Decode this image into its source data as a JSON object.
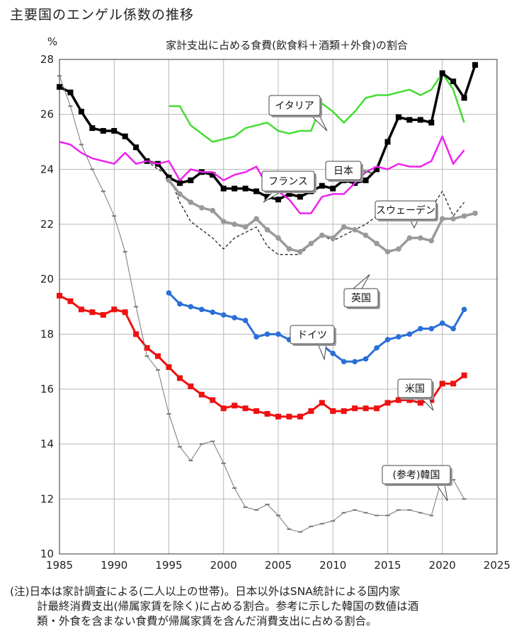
{
  "page_title": "主要国のエンゲル係数の推移",
  "note": {
    "line1": "(注)日本は家計調査による(二人以上の世帯)。日本以外はSNA統計による国内家",
    "line2": "計最終消費支出(帰属家賃を除く)に占める割合。参考に示した韓国の数値は酒",
    "line3": "類・外食を含まない食費が帰属家賃を含んだ消費支出に占める割合。"
  },
  "chart_data": {
    "type": "line",
    "subtitle": "家計支出に占める食費(飲食料＋酒類＋外食)の割合",
    "ylabel": "%",
    "xlabel": "",
    "xlim": [
      1985,
      2025
    ],
    "ylim": [
      10,
      28
    ],
    "xticks": [
      1985,
      1990,
      1995,
      2000,
      2005,
      2010,
      2015,
      2020,
      2025
    ],
    "yticks": [
      10,
      12,
      14,
      16,
      18,
      20,
      22,
      24,
      26,
      28
    ],
    "grid": true,
    "series": [
      {
        "name": "イタリア",
        "color": "#44dd33",
        "marker": "none",
        "width": 2.5,
        "dash": "",
        "x": [
          1995,
          1996,
          1997,
          1998,
          1999,
          2000,
          2001,
          2002,
          2003,
          2004,
          2005,
          2006,
          2007,
          2008,
          2009,
          2010,
          2011,
          2012,
          2013,
          2014,
          2015,
          2016,
          2017,
          2018,
          2019,
          2020,
          2021,
          2022
        ],
        "y": [
          26.3,
          26.3,
          25.6,
          25.3,
          25.0,
          25.1,
          25.2,
          25.5,
          25.6,
          25.7,
          25.4,
          25.3,
          25.4,
          25.4,
          26.4,
          26.1,
          25.7,
          26.1,
          26.6,
          26.7,
          26.7,
          26.8,
          26.9,
          26.7,
          26.9,
          27.5,
          26.9,
          25.7
        ]
      },
      {
        "name": "日本",
        "color": "#000000",
        "marker": "square",
        "width": 3.5,
        "dash": "",
        "x": [
          1985,
          1986,
          1987,
          1988,
          1989,
          1990,
          1991,
          1992,
          1993,
          1994,
          1995,
          1996,
          1997,
          1998,
          1999,
          2000,
          2001,
          2002,
          2003,
          2004,
          2005,
          2006,
          2007,
          2008,
          2009,
          2010,
          2011,
          2012,
          2013,
          2014,
          2015,
          2016,
          2017,
          2018,
          2019,
          2020,
          2021,
          2022,
          2023
        ],
        "y": [
          27.0,
          26.8,
          26.1,
          25.5,
          25.4,
          25.4,
          25.2,
          24.8,
          24.3,
          24.2,
          23.7,
          23.5,
          23.6,
          23.9,
          23.8,
          23.3,
          23.3,
          23.3,
          23.2,
          23.0,
          22.9,
          23.1,
          23.0,
          23.2,
          23.4,
          23.3,
          23.6,
          23.5,
          23.6,
          24.0,
          25.0,
          25.9,
          25.8,
          25.8,
          25.7,
          27.5,
          27.2,
          26.6,
          27.8
        ]
      },
      {
        "name": "フランス",
        "color": "#ee22ee",
        "marker": "none",
        "width": 2.5,
        "dash": "",
        "x": [
          1985,
          1986,
          1987,
          1988,
          1989,
          1990,
          1991,
          1992,
          1993,
          1994,
          1995,
          1996,
          1997,
          1998,
          1999,
          2000,
          2001,
          2002,
          2003,
          2004,
          2005,
          2006,
          2007,
          2008,
          2009,
          2010,
          2011,
          2012,
          2013,
          2014,
          2015,
          2016,
          2017,
          2018,
          2019,
          2020,
          2021,
          2022
        ],
        "y": [
          25.0,
          24.9,
          24.6,
          24.4,
          24.3,
          24.2,
          24.6,
          24.2,
          24.3,
          24.2,
          24.3,
          23.6,
          24.0,
          23.9,
          23.9,
          23.6,
          23.8,
          23.9,
          24.1,
          23.4,
          23.2,
          22.9,
          22.4,
          22.4,
          23.0,
          23.1,
          23.1,
          23.5,
          23.9,
          24.1,
          24.0,
          24.2,
          24.1,
          24.1,
          24.3,
          25.2,
          24.2,
          24.7
        ]
      },
      {
        "name": "スウェーデン",
        "color": "#111111",
        "marker": "none",
        "width": 1.2,
        "dash": "4,3",
        "x": [
          1993,
          1994,
          1995,
          1996,
          1997,
          1998,
          1999,
          2000,
          2001,
          2002,
          2003,
          2004,
          2005,
          2006,
          2007,
          2008,
          2009,
          2010,
          2011,
          2012,
          2013,
          2014,
          2015,
          2016,
          2017,
          2018,
          2019,
          2020,
          2021,
          2022
        ],
        "y": [
          24.3,
          24.0,
          23.8,
          22.8,
          22.1,
          21.8,
          21.5,
          21.1,
          21.5,
          21.7,
          21.9,
          21.2,
          20.9,
          20.9,
          20.9,
          21.3,
          21.6,
          21.4,
          21.6,
          21.8,
          22.0,
          22.3,
          22.3,
          22.5,
          22.7,
          22.8,
          22.6,
          23.2,
          22.3,
          22.8
        ]
      },
      {
        "name": "英国",
        "color": "#9a9a9a",
        "marker": "circle",
        "width": 3.5,
        "dash": "",
        "x": [
          1995,
          1996,
          1997,
          1998,
          1999,
          2000,
          2001,
          2002,
          2003,
          2004,
          2005,
          2006,
          2007,
          2008,
          2009,
          2010,
          2011,
          2012,
          2013,
          2014,
          2015,
          2016,
          2017,
          2018,
          2019,
          2020,
          2021,
          2022,
          2023
        ],
        "y": [
          23.6,
          23.1,
          22.8,
          22.6,
          22.5,
          22.1,
          22.0,
          21.9,
          22.2,
          21.8,
          21.5,
          21.1,
          21.0,
          21.3,
          21.6,
          21.5,
          21.9,
          21.8,
          21.6,
          21.3,
          21.0,
          21.1,
          21.5,
          21.5,
          21.4,
          22.2,
          22.2,
          22.3,
          22.4
        ]
      },
      {
        "name": "ドイツ",
        "color": "#2a6fd9",
        "marker": "circle",
        "width": 3,
        "dash": "",
        "x": [
          1995,
          1996,
          1997,
          1998,
          1999,
          2000,
          2001,
          2002,
          2003,
          2004,
          2005,
          2006,
          2007,
          2008,
          2009,
          2010,
          2011,
          2012,
          2013,
          2014,
          2015,
          2016,
          2017,
          2018,
          2019,
          2020,
          2021,
          2022
        ],
        "y": [
          19.5,
          19.1,
          19.0,
          18.9,
          18.8,
          18.7,
          18.6,
          18.5,
          17.9,
          18.0,
          18.0,
          17.8,
          18.0,
          17.8,
          17.6,
          17.3,
          17.0,
          17.0,
          17.1,
          17.5,
          17.8,
          17.9,
          18.0,
          18.2,
          18.2,
          18.4,
          18.2,
          18.9
        ]
      },
      {
        "name": "米国",
        "color": "#ee1111",
        "marker": "square",
        "width": 3,
        "dash": "",
        "x": [
          1985,
          1986,
          1987,
          1988,
          1989,
          1990,
          1991,
          1992,
          1993,
          1994,
          1995,
          1996,
          1997,
          1998,
          1999,
          2000,
          2001,
          2002,
          2003,
          2004,
          2005,
          2006,
          2007,
          2008,
          2009,
          2010,
          2011,
          2012,
          2013,
          2014,
          2015,
          2016,
          2017,
          2018,
          2019,
          2020,
          2021,
          2022
        ],
        "y": [
          19.4,
          19.2,
          18.9,
          18.8,
          18.7,
          18.9,
          18.8,
          18.0,
          17.5,
          17.2,
          16.8,
          16.4,
          16.1,
          15.8,
          15.6,
          15.3,
          15.4,
          15.3,
          15.2,
          15.1,
          15.0,
          15.0,
          15.0,
          15.2,
          15.5,
          15.2,
          15.2,
          15.3,
          15.3,
          15.3,
          15.5,
          15.6,
          15.6,
          15.5,
          15.6,
          16.2,
          16.2,
          16.5
        ]
      },
      {
        "name": "(参考)韓国",
        "color": "#777777",
        "marker": "dash",
        "width": 1,
        "dash": "",
        "x": [
          1985,
          1986,
          1987,
          1988,
          1989,
          1990,
          1991,
          1992,
          1993,
          1994,
          1995,
          1996,
          1997,
          1998,
          1999,
          2000,
          2001,
          2002,
          2003,
          2004,
          2005,
          2006,
          2007,
          2008,
          2009,
          2010,
          2011,
          2012,
          2013,
          2014,
          2015,
          2016,
          2017,
          2018,
          2019,
          2020,
          2021,
          2022
        ],
        "y": [
          27.4,
          26.3,
          24.9,
          24.0,
          23.2,
          22.3,
          21.0,
          19.0,
          17.2,
          16.7,
          15.1,
          13.9,
          13.4,
          14.0,
          14.1,
          13.3,
          12.4,
          11.7,
          11.6,
          11.8,
          11.4,
          10.9,
          10.8,
          11.0,
          11.1,
          11.2,
          11.5,
          11.6,
          11.5,
          11.4,
          11.4,
          11.6,
          11.6,
          11.5,
          11.4,
          12.8,
          12.7,
          12.0
        ]
      }
    ],
    "callouts": [
      {
        "text": "イタリア",
        "series": "イタリア"
      },
      {
        "text": "日本",
        "series": "日本"
      },
      {
        "text": "フランス",
        "series": "フランス"
      },
      {
        "text": "スウェーデン",
        "series": "スウェーデン"
      },
      {
        "text": "英国",
        "series": "英国"
      },
      {
        "text": "ドイツ",
        "series": "ドイツ"
      },
      {
        "text": "米国",
        "series": "米国"
      },
      {
        "text": "(参考)韓国",
        "series": "(参考)韓国"
      }
    ]
  }
}
